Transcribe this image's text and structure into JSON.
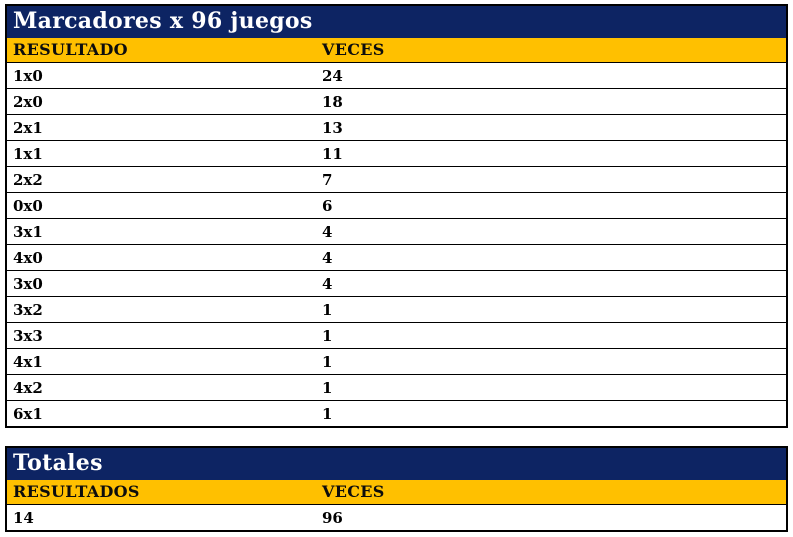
{
  "colors": {
    "title_bar_bg": "#0d2463",
    "title_bar_text": "#ffffff",
    "header_bg": "#ffc000",
    "header_text": "#0d0d0d",
    "cell_text": "#000000",
    "border": "#000000",
    "page_bg": "#ffffff"
  },
  "scores_table": {
    "title": "Marcadores x 96 juegos",
    "col_resultado": "RESULTADO",
    "col_veces": "VECES",
    "rows": [
      {
        "resultado": "1x0",
        "veces": "24"
      },
      {
        "resultado": "2x0",
        "veces": "18"
      },
      {
        "resultado": "2x1",
        "veces": "13"
      },
      {
        "resultado": "1x1",
        "veces": "11"
      },
      {
        "resultado": "2x2",
        "veces": "7"
      },
      {
        "resultado": "0x0",
        "veces": "6"
      },
      {
        "resultado": "3x1",
        "veces": "4"
      },
      {
        "resultado": "4x0",
        "veces": "4"
      },
      {
        "resultado": "3x0",
        "veces": "4"
      },
      {
        "resultado": "3x2",
        "veces": "1"
      },
      {
        "resultado": "3x3",
        "veces": "1"
      },
      {
        "resultado": "4x1",
        "veces": "1"
      },
      {
        "resultado": "4x2",
        "veces": "1"
      },
      {
        "resultado": "6x1",
        "veces": "1"
      }
    ]
  },
  "totals_table": {
    "title": "Totales",
    "col_resultados": "RESULTADOS",
    "col_veces": "VECES",
    "rows": [
      {
        "resultados": "14",
        "veces": "96"
      }
    ]
  },
  "chart_data": [
    {
      "type": "table",
      "title": "Marcadores x 96 juegos",
      "columns": [
        "RESULTADO",
        "VECES"
      ],
      "rows": [
        [
          "1x0",
          24
        ],
        [
          "2x0",
          18
        ],
        [
          "2x1",
          13
        ],
        [
          "1x1",
          11
        ],
        [
          "2x2",
          7
        ],
        [
          "0x0",
          6
        ],
        [
          "3x1",
          4
        ],
        [
          "4x0",
          4
        ],
        [
          "3x0",
          4
        ],
        [
          "3x2",
          1
        ],
        [
          "3x3",
          1
        ],
        [
          "4x1",
          1
        ],
        [
          "4x2",
          1
        ],
        [
          "6x1",
          1
        ]
      ]
    },
    {
      "type": "table",
      "title": "Totales",
      "columns": [
        "RESULTADOS",
        "VECES"
      ],
      "rows": [
        [
          14,
          96
        ]
      ]
    }
  ]
}
